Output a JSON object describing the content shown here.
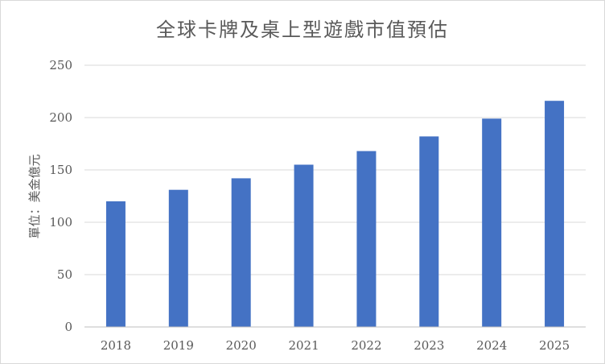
{
  "chart_data": {
    "type": "bar",
    "title": "全球卡牌及桌上型遊戲市值預估",
    "xlabel": "",
    "ylabel": "單位：美金億元",
    "categories": [
      "2018",
      "2019",
      "2020",
      "2021",
      "2022",
      "2023",
      "2024",
      "2025"
    ],
    "series": [
      {
        "values": [
          120,
          131,
          142,
          155,
          168,
          182,
          199,
          216
        ]
      }
    ],
    "ylim": [
      0,
      250
    ],
    "yticks": [
      0,
      50,
      100,
      150,
      200,
      250
    ],
    "grid": true,
    "legend": "none",
    "bar_color": "#4472c4"
  }
}
